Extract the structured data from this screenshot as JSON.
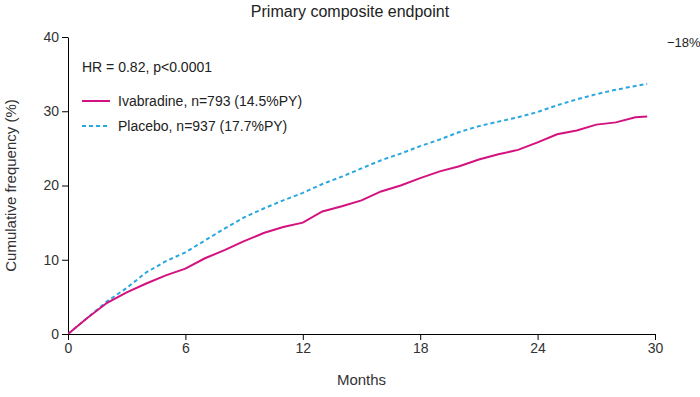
{
  "chart_data": {
    "type": "line",
    "title": "Primary composite endpoint",
    "x_label": "Months",
    "y_label": "Cumulative frequency (%)",
    "annotations": [
      "HR = 0.82, p<0.0001",
      "−18%"
    ],
    "x": [
      0,
      1,
      2,
      3,
      4,
      5,
      6,
      7,
      8,
      9,
      10,
      11,
      12,
      13,
      14,
      15,
      16,
      17,
      18,
      19,
      20,
      21,
      22,
      23,
      24,
      25,
      26,
      27,
      28,
      29,
      29.6
    ],
    "series": [
      {
        "name": "Ivabradine, n=793 (14.5%PY)",
        "color": "#d4127f",
        "line_style": "solid",
        "values": [
          0,
          2.2,
          4.2,
          5.6,
          6.8,
          7.9,
          8.8,
          10.2,
          11.3,
          12.5,
          13.6,
          14.4,
          15.0,
          16.5,
          17.2,
          18.0,
          19.2,
          20.0,
          21.0,
          21.9,
          22.6,
          23.5,
          24.2,
          24.8,
          25.8,
          26.9,
          27.4,
          28.2,
          28.5,
          29.2,
          29.3
        ]
      },
      {
        "name": "Placebo, n=937 (17.7%PY)",
        "color": "#2aa7de",
        "line_style": "dashed",
        "values": [
          0,
          2.2,
          4.4,
          6.2,
          8.3,
          9.8,
          11.0,
          12.6,
          14.2,
          15.7,
          16.9,
          18.0,
          19.0,
          20.2,
          21.2,
          22.3,
          23.4,
          24.3,
          25.3,
          26.2,
          27.2,
          28.0,
          28.6,
          29.2,
          29.9,
          30.8,
          31.6,
          32.3,
          32.9,
          33.4,
          33.7
        ]
      }
    ],
    "xlim": [
      0,
      30
    ],
    "ylim": [
      0,
      40
    ],
    "xticks": [
      0,
      6,
      12,
      18,
      24,
      30
    ],
    "yticks": [
      0,
      10,
      20,
      30,
      40
    ],
    "legend": "upper left",
    "grid": false
  }
}
